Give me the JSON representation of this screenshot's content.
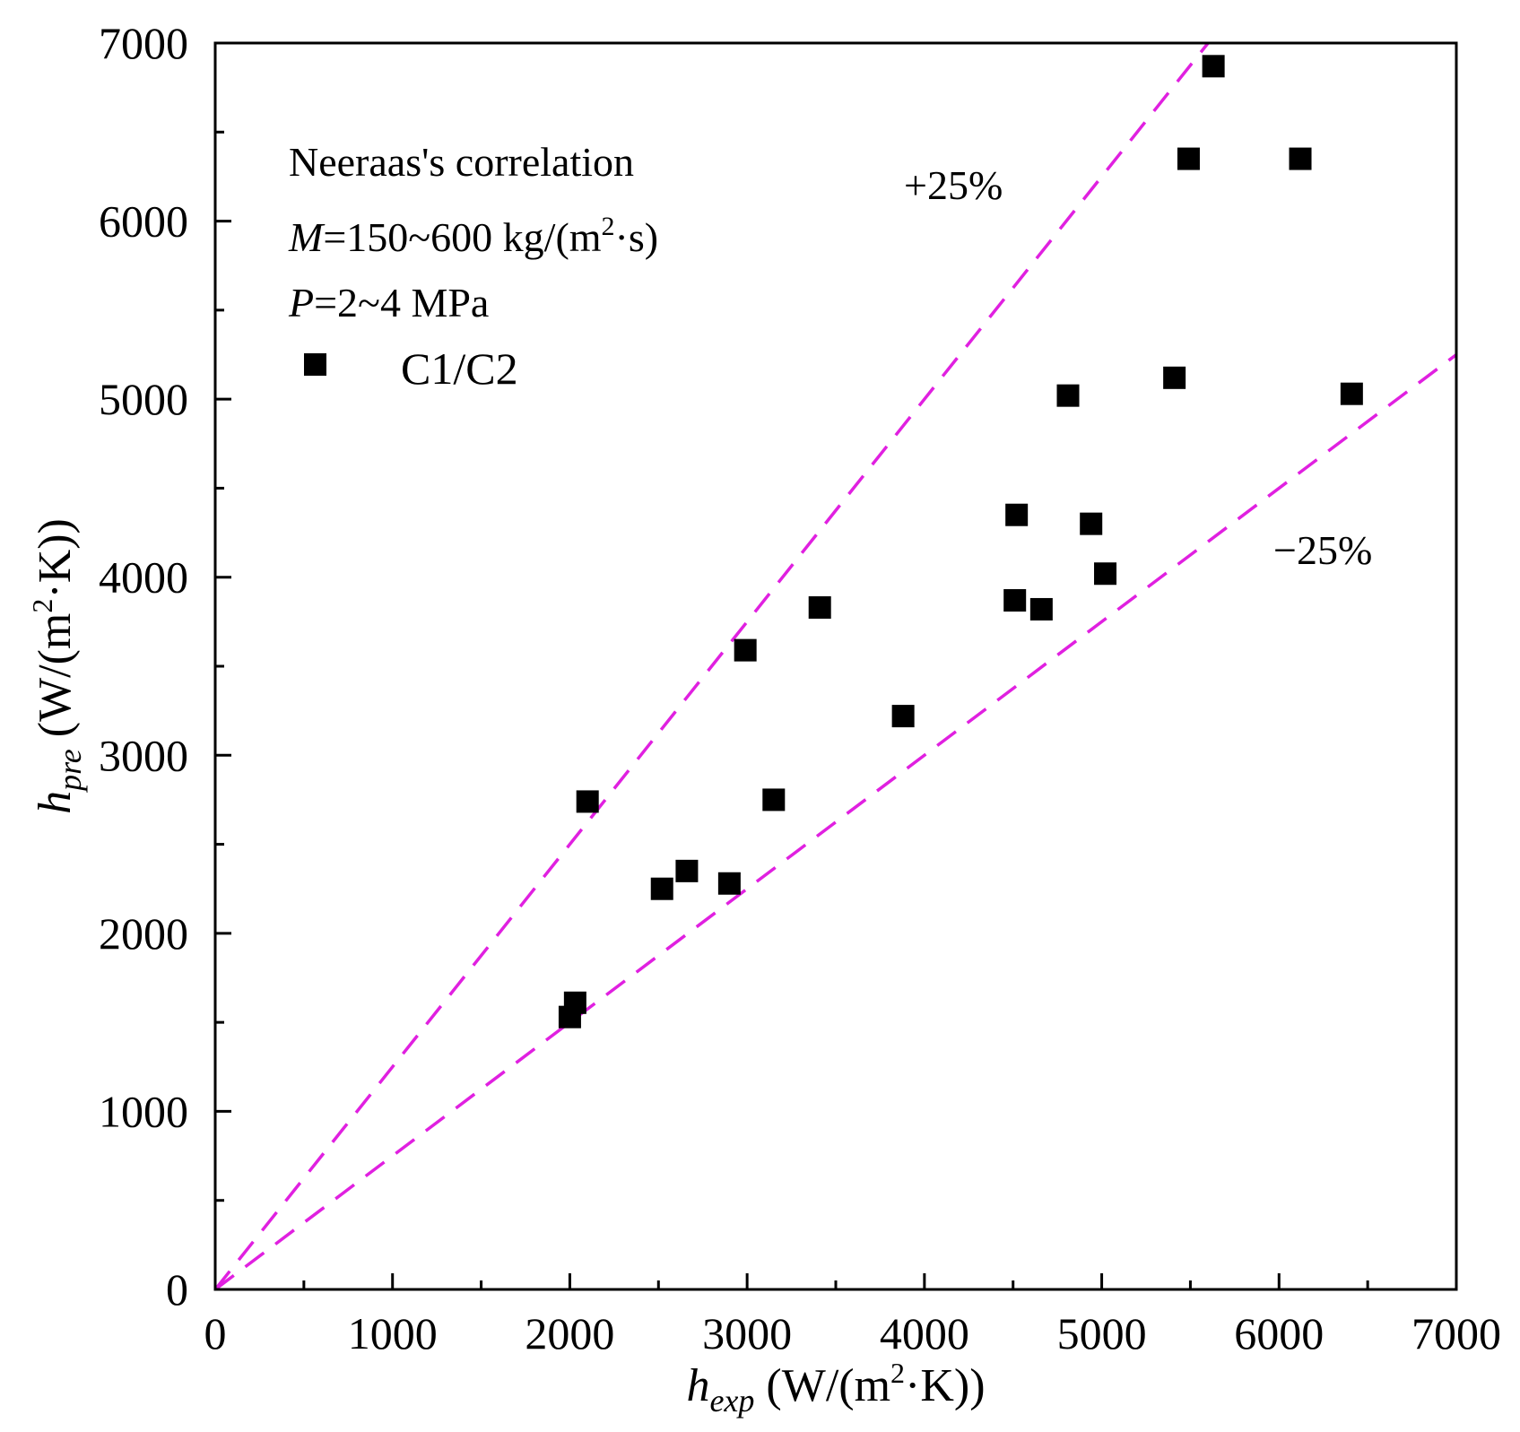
{
  "chart_data": {
    "type": "scatter",
    "xlabel": {
      "main": "h",
      "sub": "exp",
      "rest_a": " (W/(m",
      "sup": "2",
      "rest_b": "·K))"
    },
    "ylabel": {
      "main": "h",
      "sub": "pre",
      "rest_a": " (W/(m",
      "sup": "2",
      "rest_b": "·K))"
    },
    "xlim": [
      0,
      7000
    ],
    "ylim": [
      0,
      7000
    ],
    "xticks": [
      "0",
      "1000",
      "2000",
      "3000",
      "4000",
      "5000",
      "6000",
      "7000"
    ],
    "yticks": [
      "0",
      "1000",
      "2000",
      "3000",
      "4000",
      "5000",
      "6000",
      "7000"
    ],
    "grid": false,
    "legend": {
      "position": "top-left",
      "label": "C1/C2"
    },
    "annotations": {
      "line1": "Neeraas's correlation",
      "line2_var": "M",
      "line2_a": "=150~600 kg/(m",
      "line2_sup": "2",
      "line2_b": "·s)",
      "line3_var": "P",
      "line3_rest": "=2~4 MPa",
      "upper_band_label": "+25%",
      "lower_band_label": "−25%"
    },
    "reference_lines": [
      {
        "name": "+25%",
        "slope": 1.25,
        "color": "#e020e0",
        "style": "dashed"
      },
      {
        "name": "−25%",
        "slope": 0.75,
        "color": "#e020e0",
        "style": "dashed"
      }
    ],
    "series": [
      {
        "name": "C1/C2",
        "marker": "square",
        "color": "#000000",
        "x": [
          2000,
          2030,
          2100,
          2520,
          2660,
          2900,
          2990,
          3150,
          3410,
          3880,
          4510,
          4520,
          4660,
          4810,
          4940,
          5020,
          5410,
          5490,
          5630,
          6120,
          6410
        ],
        "y": [
          1530,
          1610,
          2740,
          2250,
          2350,
          2280,
          3590,
          2750,
          3830,
          3220,
          3870,
          4350,
          3820,
          5020,
          4300,
          4020,
          5120,
          6350,
          6870,
          6350,
          5030
        ]
      }
    ]
  }
}
